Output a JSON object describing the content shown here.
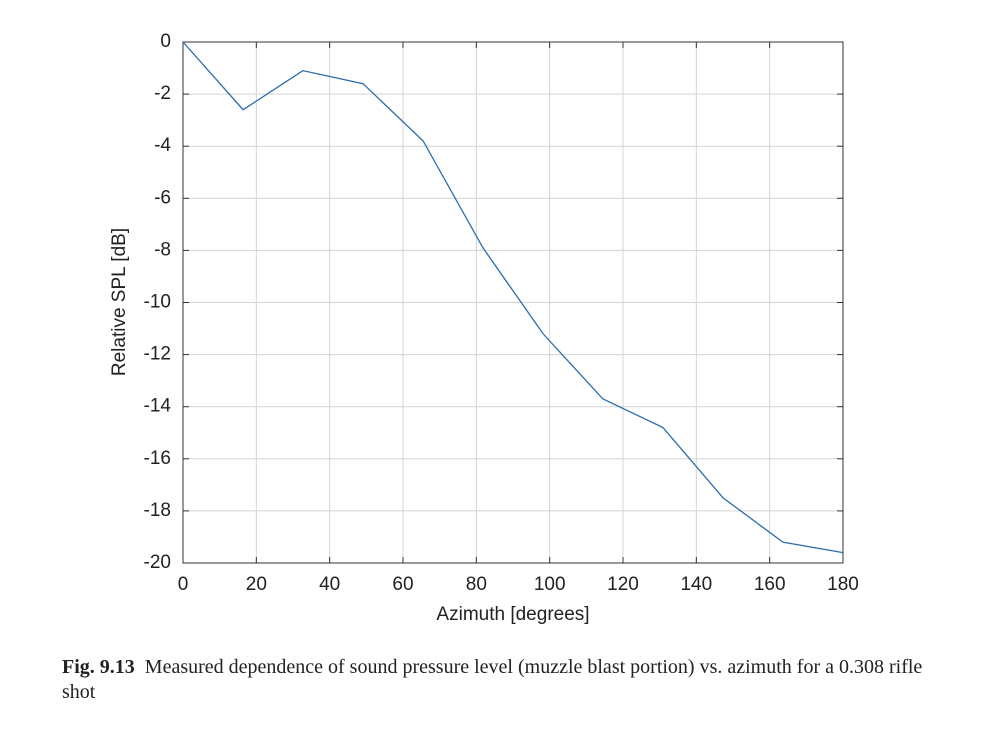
{
  "chart_data": {
    "type": "line",
    "xlabel": "Azimuth [degrees]",
    "ylabel": "Relative SPL [dB]",
    "x": [
      0,
      16.4,
      32.7,
      49.1,
      65.5,
      81.8,
      98.2,
      114.5,
      130.9,
      147.3,
      163.6,
      180
    ],
    "series": [
      {
        "color": "#2a6cae",
        "values": [
          0,
          -2.6,
          -1.1,
          -1.6,
          -3.8,
          -7.9,
          -11.2,
          -13.7,
          -14.8,
          -17.5,
          -19.2,
          -19.6
        ]
      }
    ],
    "xlim": [
      0,
      180
    ],
    "xticks": [
      0,
      20,
      40,
      60,
      80,
      100,
      120,
      140,
      160,
      180
    ],
    "ylim": [
      -20,
      0
    ],
    "yticks": [
      0,
      -2,
      -4,
      -6,
      -8,
      -10,
      -12,
      -14,
      -16,
      -18,
      -20
    ],
    "grid": true,
    "caption_label": "Fig. 9.13",
    "caption": "Measured dependence of sound pressure level (muzzle blast portion) vs. azimuth for a 0.308 rifle shot"
  }
}
